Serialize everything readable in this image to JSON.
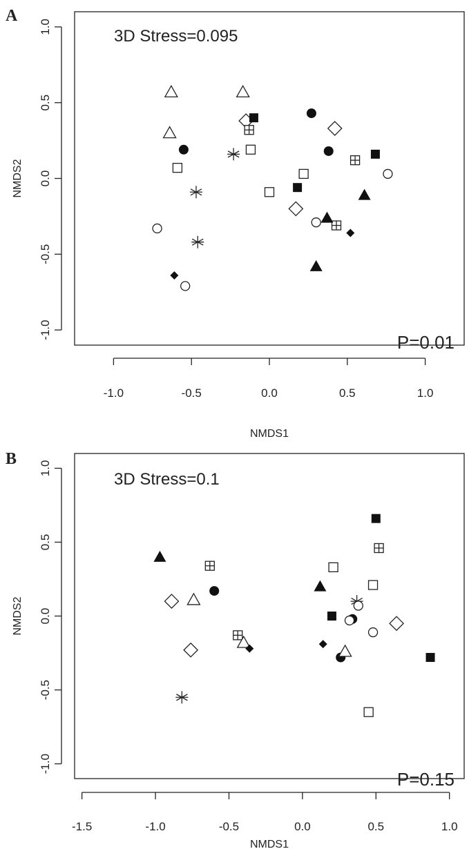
{
  "chart_data": [
    {
      "panel": "A",
      "type": "scatter",
      "xlabel": "NMDS1",
      "ylabel": "NMDS2",
      "xlim": [
        -1.25,
        1.25
      ],
      "ylim": [
        -1.1,
        1.1
      ],
      "xticks": [
        -1.0,
        -0.5,
        0.0,
        0.5,
        1.0
      ],
      "xtick_labels": [
        "-1.0",
        "-0.5",
        "0.0",
        "0.5",
        "1.0"
      ],
      "yticks": [
        -1.0,
        -0.5,
        0.0,
        0.5,
        1.0
      ],
      "ytick_labels": [
        "-1.0",
        "-0.5",
        "0.0",
        "0.5",
        "1.0"
      ],
      "stress_label": "3D Stress=0.095",
      "p_label": "P=0.01",
      "points": [
        {
          "x": -0.63,
          "y": 0.57,
          "marker": "triangle-open"
        },
        {
          "x": -0.17,
          "y": 0.57,
          "marker": "triangle-open"
        },
        {
          "x": -0.64,
          "y": 0.3,
          "marker": "triangle-open"
        },
        {
          "x": -0.15,
          "y": 0.38,
          "marker": "diamond-open"
        },
        {
          "x": 0.42,
          "y": 0.33,
          "marker": "diamond-open"
        },
        {
          "x": 0.17,
          "y": -0.2,
          "marker": "diamond-open"
        },
        {
          "x": -0.1,
          "y": 0.4,
          "marker": "square-filled"
        },
        {
          "x": 0.68,
          "y": 0.16,
          "marker": "square-filled"
        },
        {
          "x": 0.18,
          "y": -0.06,
          "marker": "square-filled"
        },
        {
          "x": -0.13,
          "y": 0.32,
          "marker": "square-cross"
        },
        {
          "x": 0.55,
          "y": 0.12,
          "marker": "square-cross"
        },
        {
          "x": 0.43,
          "y": -0.31,
          "marker": "square-cross"
        },
        {
          "x": 0.27,
          "y": 0.43,
          "marker": "circle-filled"
        },
        {
          "x": -0.55,
          "y": 0.19,
          "marker": "circle-filled"
        },
        {
          "x": 0.38,
          "y": 0.18,
          "marker": "circle-filled"
        },
        {
          "x": -0.12,
          "y": 0.19,
          "marker": "square-open"
        },
        {
          "x": -0.59,
          "y": 0.07,
          "marker": "square-open"
        },
        {
          "x": 0.22,
          "y": 0.03,
          "marker": "square-open"
        },
        {
          "x": 0.0,
          "y": -0.09,
          "marker": "square-open"
        },
        {
          "x": -0.23,
          "y": 0.16,
          "marker": "asterisk"
        },
        {
          "x": -0.47,
          "y": -0.09,
          "marker": "asterisk"
        },
        {
          "x": -0.46,
          "y": -0.42,
          "marker": "asterisk"
        },
        {
          "x": 0.76,
          "y": 0.03,
          "marker": "circle-open"
        },
        {
          "x": 0.3,
          "y": -0.29,
          "marker": "circle-open"
        },
        {
          "x": -0.72,
          "y": -0.33,
          "marker": "circle-open"
        },
        {
          "x": -0.54,
          "y": -0.71,
          "marker": "circle-open"
        },
        {
          "x": 0.61,
          "y": -0.11,
          "marker": "triangle-filled"
        },
        {
          "x": 0.37,
          "y": -0.26,
          "marker": "triangle-filled"
        },
        {
          "x": 0.3,
          "y": -0.58,
          "marker": "triangle-filled"
        },
        {
          "x": 0.52,
          "y": -0.36,
          "marker": "diamond-filled"
        },
        {
          "x": -0.61,
          "y": -0.64,
          "marker": "diamond-filled"
        }
      ]
    },
    {
      "panel": "B",
      "type": "scatter",
      "xlabel": "NMDS1",
      "ylabel": "NMDS2",
      "xlim": [
        -1.55,
        1.1
      ],
      "ylim": [
        -1.1,
        1.1
      ],
      "xticks": [
        -1.5,
        -1.0,
        -0.5,
        0.0,
        0.5,
        1.0
      ],
      "xtick_labels": [
        "-1.5",
        "-1.0",
        "-0.5",
        "0.0",
        "0.5",
        "1.0"
      ],
      "yticks": [
        -1.0,
        -0.5,
        0.0,
        0.5,
        1.0
      ],
      "ytick_labels": [
        "-1.0",
        "-0.5",
        "0.0",
        "0.5",
        "1.0"
      ],
      "stress_label": "3D Stress=0.1",
      "p_label": "P=0.15",
      "points": [
        {
          "x": 0.5,
          "y": 0.66,
          "marker": "square-filled"
        },
        {
          "x": 0.2,
          "y": 0.0,
          "marker": "square-filled"
        },
        {
          "x": 0.87,
          "y": -0.28,
          "marker": "square-filled"
        },
        {
          "x": 0.52,
          "y": 0.46,
          "marker": "square-cross"
        },
        {
          "x": -0.63,
          "y": 0.34,
          "marker": "square-cross"
        },
        {
          "x": -0.44,
          "y": -0.13,
          "marker": "square-cross"
        },
        {
          "x": 0.21,
          "y": 0.33,
          "marker": "square-open"
        },
        {
          "x": 0.48,
          "y": 0.21,
          "marker": "square-open"
        },
        {
          "x": 0.45,
          "y": -0.65,
          "marker": "square-open"
        },
        {
          "x": -0.97,
          "y": 0.4,
          "marker": "triangle-filled"
        },
        {
          "x": 0.12,
          "y": 0.2,
          "marker": "triangle-filled"
        },
        {
          "x": -0.6,
          "y": 0.17,
          "marker": "circle-filled"
        },
        {
          "x": 0.34,
          "y": -0.02,
          "marker": "circle-filled"
        },
        {
          "x": 0.26,
          "y": -0.28,
          "marker": "circle-filled"
        },
        {
          "x": -0.89,
          "y": 0.1,
          "marker": "diamond-open"
        },
        {
          "x": -0.76,
          "y": -0.23,
          "marker": "diamond-open"
        },
        {
          "x": 0.64,
          "y": -0.05,
          "marker": "diamond-open"
        },
        {
          "x": -0.74,
          "y": 0.11,
          "marker": "triangle-open"
        },
        {
          "x": -0.4,
          "y": -0.18,
          "marker": "triangle-open"
        },
        {
          "x": 0.29,
          "y": -0.24,
          "marker": "triangle-open"
        },
        {
          "x": 0.37,
          "y": 0.1,
          "marker": "asterisk"
        },
        {
          "x": -0.82,
          "y": -0.55,
          "marker": "asterisk"
        },
        {
          "x": 0.38,
          "y": 0.07,
          "marker": "circle-open"
        },
        {
          "x": 0.32,
          "y": -0.03,
          "marker": "circle-open"
        },
        {
          "x": 0.48,
          "y": -0.11,
          "marker": "circle-open"
        },
        {
          "x": -0.36,
          "y": -0.22,
          "marker": "diamond-filled"
        },
        {
          "x": 0.14,
          "y": -0.19,
          "marker": "diamond-filled"
        }
      ]
    }
  ]
}
